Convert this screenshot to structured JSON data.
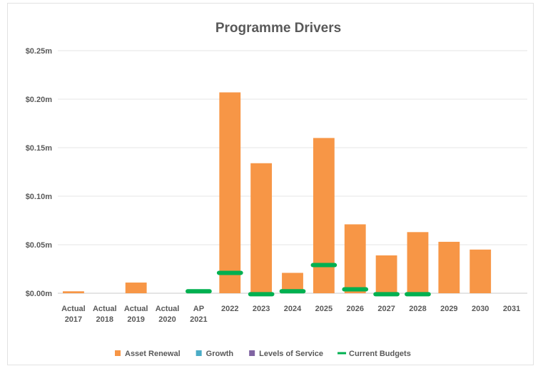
{
  "chart_data": {
    "type": "bar",
    "title": "Programme Drivers",
    "categories": [
      [
        "Actual",
        "2017"
      ],
      [
        "Actual",
        "2018"
      ],
      [
        "Actual",
        "2019"
      ],
      [
        "Actual",
        "2020"
      ],
      [
        "AP",
        "2021"
      ],
      [
        "2022"
      ],
      [
        "2023"
      ],
      [
        "2024"
      ],
      [
        "2025"
      ],
      [
        "2026"
      ],
      [
        "2027"
      ],
      [
        "2028"
      ],
      [
        "2029"
      ],
      [
        "2030"
      ],
      [
        "2031"
      ]
    ],
    "y_ticks": [
      "$0.00m",
      "$0.05m",
      "$0.10m",
      "$0.15m",
      "$0.20m",
      "$0.25m"
    ],
    "y_tick_values": [
      0,
      0.05,
      0.1,
      0.15,
      0.2,
      0.25
    ],
    "ylim": [
      0,
      0.25
    ],
    "grid": true,
    "legend_position": "bottom",
    "series": [
      {
        "name": "Asset Renewal",
        "kind": "bar",
        "color": "#F79646",
        "values": [
          0.002,
          0,
          0.011,
          0,
          0,
          0.207,
          0.134,
          0.021,
          0.16,
          0.071,
          0.039,
          0.063,
          0.053,
          0.045,
          0
        ]
      },
      {
        "name": "Growth",
        "kind": "bar",
        "color": "#4BACC6",
        "values": [
          0,
          0,
          0,
          0,
          0,
          0,
          0,
          0,
          0,
          0,
          0,
          0,
          0,
          0,
          0
        ]
      },
      {
        "name": "Levels of Service",
        "kind": "bar",
        "color": "#8064A2",
        "values": [
          0,
          0,
          0,
          0,
          0,
          0,
          0,
          0,
          0,
          0,
          0,
          0,
          0,
          0,
          0
        ]
      },
      {
        "name": "Current Budgets",
        "kind": "marker",
        "color": "#00B050",
        "values": [
          null,
          null,
          null,
          null,
          0.002,
          0.021,
          -0.001,
          0.002,
          0.029,
          0.004,
          -0.001,
          -0.001,
          null,
          null,
          null
        ]
      }
    ]
  }
}
